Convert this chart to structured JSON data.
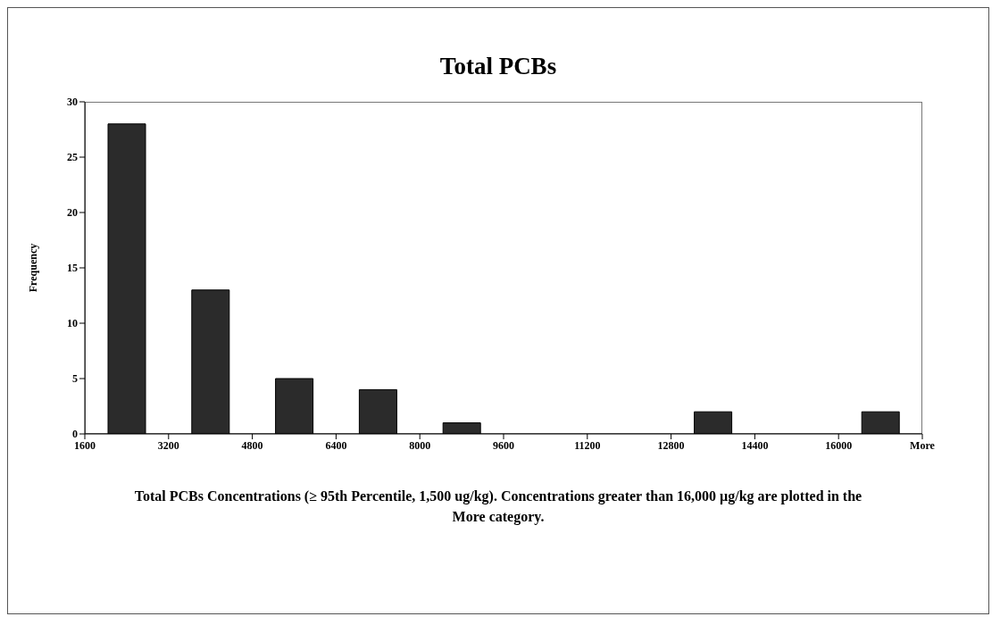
{
  "chart_data": {
    "type": "histogram",
    "title": "Total PCBs",
    "ylabel": "Frequency",
    "bins": [
      1600,
      3200,
      4800,
      6400,
      8000,
      9600,
      11200,
      12800,
      14400,
      16000,
      17600
    ],
    "values": [
      28,
      13,
      5,
      4,
      1,
      0,
      0,
      2,
      0,
      2
    ],
    "color": "#2b2b2b",
    "xlim": [
      1600,
      17600
    ],
    "xticks": [
      1600,
      3200,
      4800,
      6400,
      8000,
      9600,
      11200,
      12800,
      14400,
      16000,
      {
        "value": 17600,
        "label": "More"
      }
    ],
    "ylim": [
      0,
      30
    ],
    "yticks": [
      0,
      5,
      10,
      15,
      20,
      25,
      30
    ],
    "grid": false,
    "legend": false,
    "annotations": [
      "Total PCBs Concentrations (≥ 95th Percentile, 1,500 ug/kg).  Concentrations greater than 16,000 µg/kg are plotted in the More category."
    ]
  }
}
